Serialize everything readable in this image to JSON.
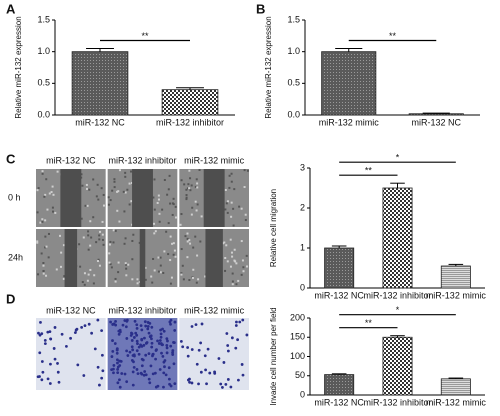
{
  "chart_data": [
    {
      "type": "bar",
      "panel": "A",
      "ylabel": "Relative miR-132 expression",
      "categories": [
        "miR-132 NC",
        "miR-132 inhibitor"
      ],
      "values": [
        1.0,
        0.4
      ],
      "errors": [
        0.05,
        0.03
      ],
      "patterns": [
        "dots",
        "checker"
      ],
      "ylim": [
        0,
        1.5
      ],
      "yticks": [
        {
          "value": 0,
          "label": "0.0"
        },
        0.5,
        {
          "value": 1,
          "label": "1.0"
        },
        1.5
      ],
      "significance": [
        {
          "from": 0,
          "to": 1,
          "label": "**"
        }
      ]
    },
    {
      "type": "bar",
      "panel": "B",
      "ylabel": "Relative miR-132 expression",
      "categories": [
        "miR-132 mimic",
        "miR-132 NC"
      ],
      "values": [
        1.0,
        0.02
      ],
      "errors": [
        0.05,
        0.01
      ],
      "patterns": [
        "dots",
        "dots"
      ],
      "ylim": [
        0,
        1.5
      ],
      "yticks": [
        {
          "value": 0,
          "label": "0.0"
        },
        0.5,
        {
          "value": 1,
          "label": "1.0"
        },
        1.5
      ],
      "significance": [
        {
          "from": 0,
          "to": 1,
          "label": "**"
        }
      ]
    },
    {
      "type": "bar",
      "ylabel": "Relative cell migration",
      "categories": [
        "miR-132 NC",
        "miR-132 inhibitor",
        "miR-132 mimic"
      ],
      "values": [
        1.0,
        2.5,
        0.55
      ],
      "errors": [
        0.05,
        0.12,
        0.04
      ],
      "patterns": [
        "dots",
        "checker",
        "lines"
      ],
      "ylim": [
        0,
        3
      ],
      "yticks": [
        0,
        1,
        2,
        3
      ],
      "significance": [
        {
          "from": 0,
          "to": 1,
          "label": "**"
        },
        {
          "from": 0,
          "to": 2,
          "label": "*"
        }
      ]
    },
    {
      "type": "bar",
      "ylabel": "Invade cell number per field",
      "categories": [
        "miR-132 NC",
        "miR-132 inhibitor",
        "miR-132 mimic"
      ],
      "values": [
        53,
        150,
        42
      ],
      "errors": [
        2,
        4,
        2
      ],
      "patterns": [
        "dots",
        "checker",
        "lines"
      ],
      "ylim": [
        0,
        200
      ],
      "yticks": [
        0,
        50,
        100,
        150,
        200
      ],
      "significance": [
        {
          "from": 0,
          "to": 1,
          "label": "**"
        },
        {
          "from": 0,
          "to": 2,
          "label": "*"
        }
      ]
    }
  ],
  "image_panels": [
    {
      "panel": "C",
      "columns": [
        "miR-132 NC",
        "miR-132 inhibitor",
        "miR-132 mimic"
      ],
      "rows": [
        "0 h",
        "24h"
      ]
    },
    {
      "panel": "D",
      "columns": [
        "miR-132 NC",
        "miR-132 inhibitor",
        "miR-132 mimic"
      ]
    }
  ]
}
